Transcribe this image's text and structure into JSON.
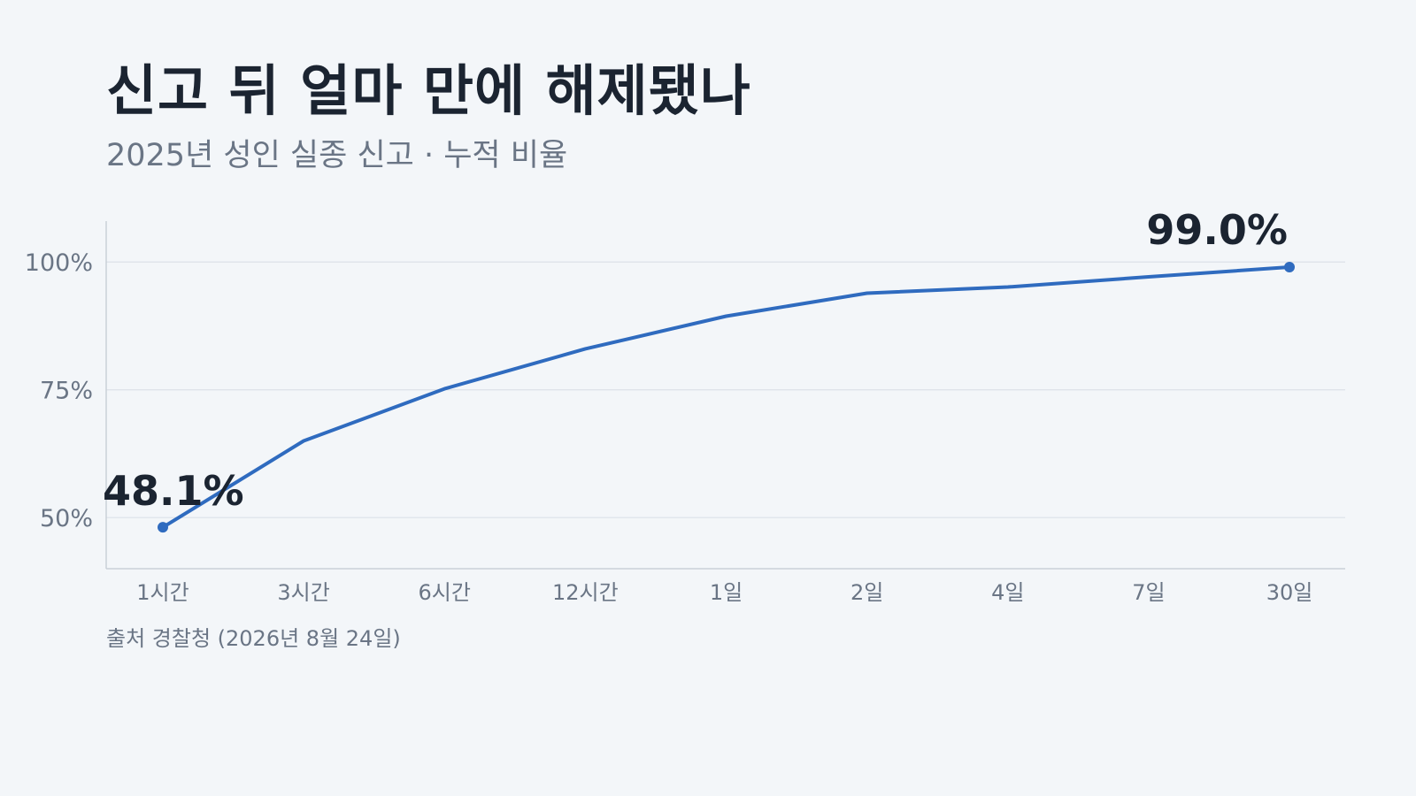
{
  "title": "신고 뒤 얼마 만에 해제됐나",
  "subtitle": "2025년 성인 실종 신고 · 누적 비율",
  "source": "출처 경찰청 (2026년 8월 24일)",
  "colors": {
    "line": "#2f6bbf",
    "grid": "#dde2e8",
    "axis": "#c9d0d8",
    "tick_text": "#6a7585",
    "annotation": "#1b2431"
  },
  "chart_data": {
    "type": "line",
    "categories": [
      "1시간",
      "3시간",
      "6시간",
      "12시간",
      "1일",
      "2일",
      "4일",
      "7일",
      "30일"
    ],
    "values": [
      48.1,
      65.0,
      75.2,
      83.0,
      89.4,
      93.9,
      95.1,
      97.1,
      99.0
    ],
    "ylim": [
      40,
      108
    ],
    "yticks": [
      50,
      75,
      100
    ],
    "ytick_labels": [
      "50%",
      "75%",
      "100%"
    ],
    "grid": true,
    "annotations": [
      {
        "index": 0,
        "label": "48.1%"
      },
      {
        "index": 8,
        "label": "99.0%"
      }
    ]
  }
}
